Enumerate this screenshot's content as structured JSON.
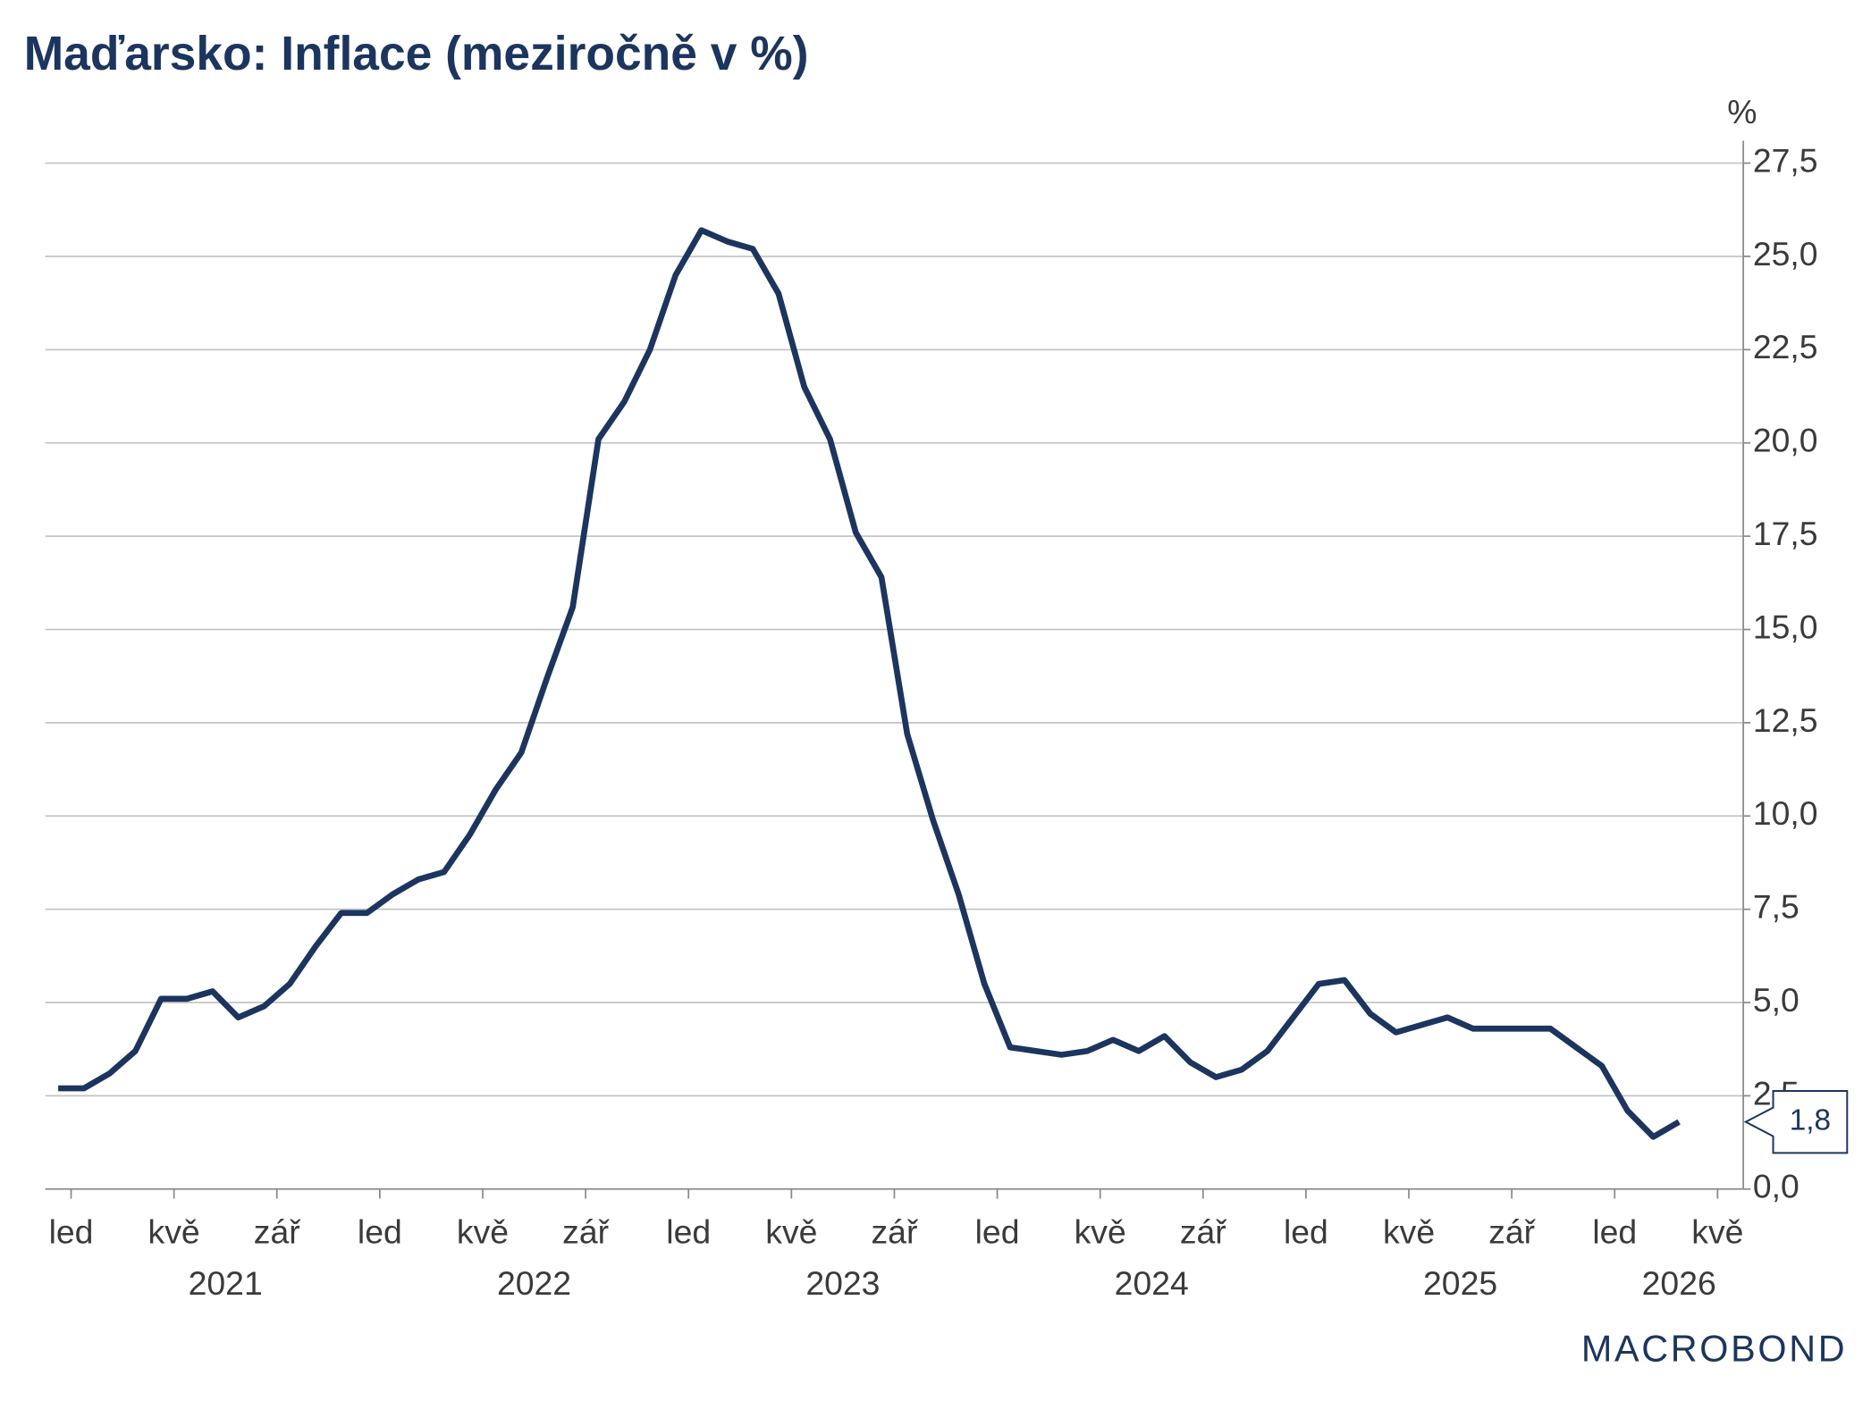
{
  "chart_data": {
    "type": "line",
    "title": "Maďarsko: Inflace (meziročně v %)",
    "y_unit": "%",
    "brand": "MACROBOND",
    "x": [
      "2020-12",
      "2021-01",
      "2021-02",
      "2021-03",
      "2021-04",
      "2021-05",
      "2021-06",
      "2021-07",
      "2021-08",
      "2021-09",
      "2021-10",
      "2021-11",
      "2021-12",
      "2022-01",
      "2022-02",
      "2022-03",
      "2022-04",
      "2022-05",
      "2022-06",
      "2022-07",
      "2022-08",
      "2022-09",
      "2022-10",
      "2022-11",
      "2022-12",
      "2023-01",
      "2023-02",
      "2023-03",
      "2023-04",
      "2023-05",
      "2023-06",
      "2023-07",
      "2023-08",
      "2023-09",
      "2023-10",
      "2023-11",
      "2023-12",
      "2024-01",
      "2024-02",
      "2024-03",
      "2024-04",
      "2024-05",
      "2024-06",
      "2024-07",
      "2024-08",
      "2024-09",
      "2024-10",
      "2024-11",
      "2024-12",
      "2025-01",
      "2025-02",
      "2025-03",
      "2025-04",
      "2025-05",
      "2025-06",
      "2025-07",
      "2025-08",
      "2025-09",
      "2025-10",
      "2025-11",
      "2025-12",
      "2026-01",
      "2026-02",
      "2026-03"
    ],
    "series": [
      {
        "color": "#1c355e",
        "values": [
          2.7,
          2.7,
          3.1,
          3.7,
          5.1,
          5.1,
          5.3,
          4.6,
          4.9,
          5.5,
          6.5,
          7.4,
          7.4,
          7.9,
          8.3,
          8.5,
          9.5,
          10.7,
          11.7,
          13.7,
          15.6,
          20.1,
          21.1,
          22.5,
          24.5,
          25.7,
          25.4,
          25.2,
          24.0,
          21.5,
          20.1,
          17.6,
          16.4,
          12.2,
          9.9,
          7.9,
          5.5,
          3.8,
          3.7,
          3.6,
          3.7,
          4.0,
          3.7,
          4.1,
          3.4,
          3.0,
          3.2,
          3.7,
          4.6,
          5.5,
          5.6,
          4.7,
          4.2,
          4.4,
          4.6,
          4.3,
          4.3,
          4.3,
          4.3,
          3.8,
          3.3,
          2.1,
          1.4,
          1.8
        ],
        "value_labels": [
          null,
          null,
          null,
          null,
          null,
          null,
          null,
          null,
          null,
          null,
          null,
          null,
          null,
          null,
          null,
          null,
          null,
          null,
          null,
          null,
          null,
          null,
          null,
          null,
          null,
          null,
          null,
          null,
          null,
          null,
          null,
          null,
          null,
          null,
          null,
          null,
          null,
          null,
          null,
          null,
          null,
          null,
          null,
          null,
          null,
          null,
          null,
          null,
          null,
          null,
          null,
          null,
          null,
          null,
          null,
          null,
          null,
          null,
          null,
          null,
          null,
          null,
          null,
          "1,8"
        ]
      }
    ],
    "xlim": [
      "2020-12",
      "2026-06"
    ],
    "xticks": [
      {
        "value": "2021-01",
        "label": "led"
      },
      {
        "value": "2021-05",
        "label": "kvě"
      },
      {
        "value": "2021-09",
        "label": "zář"
      },
      {
        "value": "2022-01",
        "label": "led"
      },
      {
        "value": "2022-05",
        "label": "kvě"
      },
      {
        "value": "2022-09",
        "label": "zář"
      },
      {
        "value": "2023-01",
        "label": "led"
      },
      {
        "value": "2023-05",
        "label": "kvě"
      },
      {
        "value": "2023-09",
        "label": "zář"
      },
      {
        "value": "2024-01",
        "label": "led"
      },
      {
        "value": "2024-05",
        "label": "kvě"
      },
      {
        "value": "2024-09",
        "label": "zář"
      },
      {
        "value": "2025-01",
        "label": "led"
      },
      {
        "value": "2025-05",
        "label": "kvě"
      },
      {
        "value": "2025-09",
        "label": "zář"
      },
      {
        "value": "2026-01",
        "label": "led"
      },
      {
        "value": "2026-05",
        "label": "kvě"
      }
    ],
    "years": [
      "2021",
      "2022",
      "2023",
      "2024",
      "2025",
      "2026"
    ],
    "ylim": [
      0,
      28.1
    ],
    "yticks": [
      {
        "value": 0,
        "label": "0,0"
      },
      {
        "value": 2.5,
        "label": "2,5"
      },
      {
        "value": 5,
        "label": "5,0"
      },
      {
        "value": 7.5,
        "label": "7,5"
      },
      {
        "value": 10,
        "label": "10,0"
      },
      {
        "value": 12.5,
        "label": "12,5"
      },
      {
        "value": 15,
        "label": "15,0"
      },
      {
        "value": 17.5,
        "label": "17,5"
      },
      {
        "value": 20,
        "label": "20,0"
      },
      {
        "value": 22.5,
        "label": "22,5"
      },
      {
        "value": 25,
        "label": "25,0"
      },
      {
        "value": 27.5,
        "label": "27,5"
      }
    ],
    "grid": true
  }
}
